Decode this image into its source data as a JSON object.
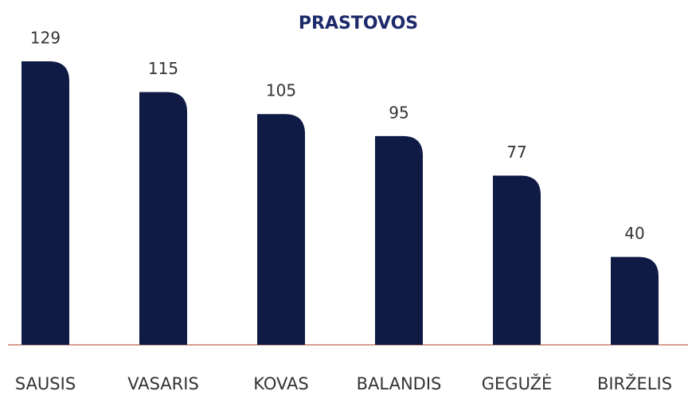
{
  "chart_data": {
    "type": "bar",
    "title": "PRASTOVOS",
    "categories": [
      "SAUSIS",
      "VASARIS",
      "KOVAS",
      "BALANDIS",
      "GEGUŽĖ",
      "BIRŽELIS"
    ],
    "values": [
      129,
      115,
      105,
      95,
      77,
      40
    ],
    "color": "#0f1a45"
  }
}
